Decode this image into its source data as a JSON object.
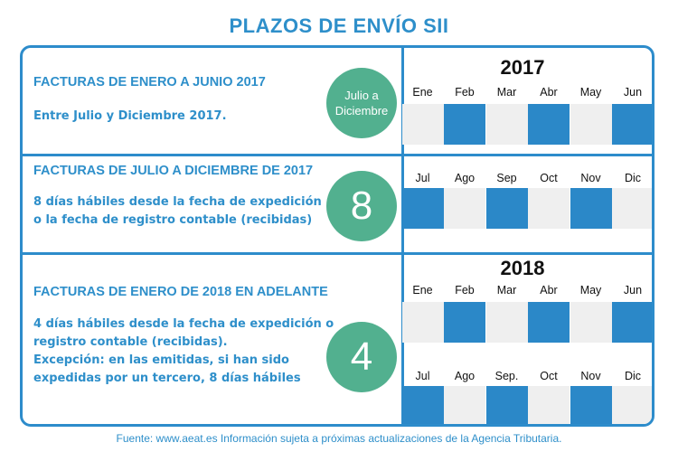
{
  "title": "PLAZOS DE ENVÍO SII",
  "sections": [
    {
      "heading": "FACTURAS DE ENERO A JUNIO 2017",
      "text": [
        "Entre Julio y Diciembre 2017."
      ],
      "badge": [
        "Julio a",
        "Diciembre"
      ]
    },
    {
      "heading": "FACTURAS DE JULIO A DICIEMBRE DE 2017",
      "text": [
        "8 días hábiles desde la fecha de expedición",
        "o la fecha de registro contable (recibidas)"
      ],
      "badge": [
        "8"
      ]
    },
    {
      "heading": "FACTURAS DE ENERO DE 2018 EN ADELANTE",
      "text": [
        "4 días hábiles desde la fecha de expedición o",
        "registro contable (recibidas).",
        "Excepción: en las emitidas, si han sido",
        "expedidas por un tercero, 8 días hábiles"
      ],
      "badge": [
        "4"
      ]
    }
  ],
  "calendars": [
    {
      "year": "2017",
      "months": [
        "Ene",
        "Feb",
        "Mar",
        "Abr",
        "May",
        "Jun"
      ],
      "highlighted": [
        false,
        true,
        false,
        true,
        false,
        true
      ]
    },
    {
      "year": "",
      "months": [
        "Jul",
        "Ago",
        "Sep",
        "Oct",
        "Nov",
        "Dic"
      ],
      "highlighted": [
        true,
        false,
        true,
        false,
        true,
        false
      ]
    },
    {
      "year": "2018",
      "months": [
        "Ene",
        "Feb",
        "Mar",
        "Abr",
        "May",
        "Jun"
      ],
      "highlighted": [
        false,
        true,
        false,
        true,
        false,
        true
      ]
    },
    {
      "year": "",
      "months": [
        "Jul",
        "Ago",
        "Sep.",
        "Oct",
        "Nov",
        "Dic"
      ],
      "highlighted": [
        true,
        false,
        true,
        false,
        true,
        false
      ]
    }
  ],
  "footer": "Fuente: www.aeat.es Información sujeta a próximas actualizaciones de la Agencia Tributaria.",
  "colors": {
    "accent": "#2e8fca",
    "highlight": "#2b88c8",
    "empty": "#efefef",
    "badge": "#52b08f"
  }
}
